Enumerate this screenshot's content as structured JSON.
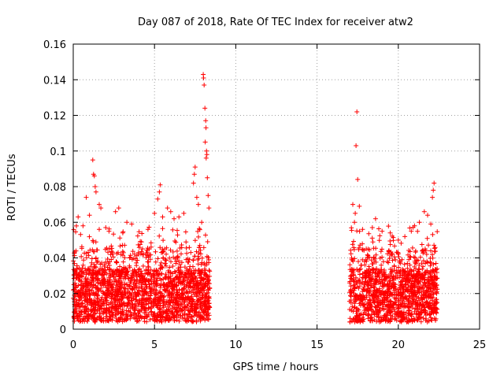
{
  "chart_data": {
    "type": "scatter",
    "title": "Day 087 of 2018, Rate Of TEC Index for receiver atw2",
    "xlabel": "GPS time / hours",
    "ylabel": "ROTI / TECUs",
    "xlim": [
      0,
      25
    ],
    "ylim": [
      0,
      0.16
    ],
    "x_ticks": [
      0,
      5,
      10,
      15,
      20,
      25
    ],
    "x_tick_labels": [
      "0",
      "5",
      "10",
      "15",
      "20",
      "25"
    ],
    "y_ticks": [
      0,
      0.02,
      0.04,
      0.06,
      0.08,
      0.1,
      0.12,
      0.14,
      0.16
    ],
    "y_tick_labels": [
      "0",
      "0.02",
      "0.04",
      "0.06",
      "0.08",
      "0.1",
      "0.12",
      "0.14",
      "0.16"
    ],
    "grid": true,
    "marker": "+",
    "marker_color": "#ff0000",
    "series": [
      {
        "name": "ROTI",
        "segments": [
          {
            "x_start": 0.0,
            "x_end": 8.4
          },
          {
            "x_start": 17.0,
            "x_end": 22.4
          }
        ],
        "points": [
          [
            0.3,
            0.063
          ],
          [
            0.6,
            0.058
          ],
          [
            0.8,
            0.074
          ],
          [
            1.0,
            0.064
          ],
          [
            1.2,
            0.095
          ],
          [
            1.25,
            0.087
          ],
          [
            1.3,
            0.086
          ],
          [
            1.35,
            0.08
          ],
          [
            1.4,
            0.077
          ],
          [
            1.6,
            0.07
          ],
          [
            1.7,
            0.068
          ],
          [
            2.0,
            0.057
          ],
          [
            2.2,
            0.055
          ],
          [
            2.6,
            0.066
          ],
          [
            2.8,
            0.068
          ],
          [
            3.3,
            0.06
          ],
          [
            3.6,
            0.059
          ],
          [
            4.2,
            0.049
          ],
          [
            4.6,
            0.056
          ],
          [
            5.0,
            0.065
          ],
          [
            5.2,
            0.073
          ],
          [
            5.3,
            0.077
          ],
          [
            5.35,
            0.081
          ],
          [
            5.5,
            0.063
          ],
          [
            5.8,
            0.068
          ],
          [
            6.0,
            0.066
          ],
          [
            6.2,
            0.062
          ],
          [
            6.5,
            0.063
          ],
          [
            6.8,
            0.065
          ],
          [
            7.4,
            0.082
          ],
          [
            7.45,
            0.087
          ],
          [
            7.5,
            0.091
          ],
          [
            7.6,
            0.074
          ],
          [
            7.7,
            0.07
          ],
          [
            7.9,
            0.06
          ],
          [
            8.0,
            0.143
          ],
          [
            8.02,
            0.141
          ],
          [
            8.05,
            0.137
          ],
          [
            8.1,
            0.124
          ],
          [
            8.15,
            0.117
          ],
          [
            8.17,
            0.113
          ],
          [
            8.12,
            0.105
          ],
          [
            8.2,
            0.1
          ],
          [
            8.22,
            0.098
          ],
          [
            8.18,
            0.096
          ],
          [
            8.25,
            0.085
          ],
          [
            8.3,
            0.075
          ],
          [
            8.35,
            0.068
          ],
          [
            17.2,
            0.07
          ],
          [
            17.3,
            0.06
          ],
          [
            17.35,
            0.065
          ],
          [
            17.4,
            0.103
          ],
          [
            17.45,
            0.122
          ],
          [
            17.5,
            0.084
          ],
          [
            17.6,
            0.069
          ],
          [
            17.8,
            0.056
          ],
          [
            18.4,
            0.057
          ],
          [
            18.6,
            0.062
          ],
          [
            19.0,
            0.055
          ],
          [
            19.5,
            0.054
          ],
          [
            20.0,
            0.05
          ],
          [
            20.4,
            0.052
          ],
          [
            20.8,
            0.055
          ],
          [
            21.0,
            0.058
          ],
          [
            21.3,
            0.06
          ],
          [
            21.6,
            0.066
          ],
          [
            21.8,
            0.064
          ],
          [
            22.0,
            0.059
          ],
          [
            22.1,
            0.074
          ],
          [
            22.15,
            0.078
          ],
          [
            22.2,
            0.082
          ]
        ]
      }
    ]
  }
}
